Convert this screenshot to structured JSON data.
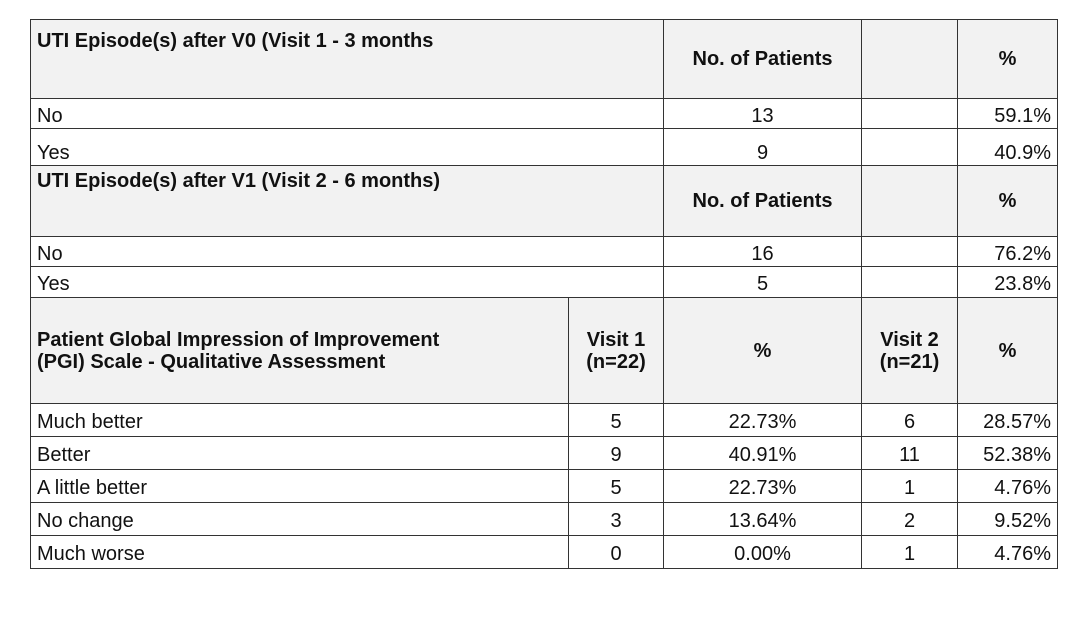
{
  "section1": {
    "header": {
      "label": "UTI Episode(s) after V0 (Visit 1 - 3 months",
      "count_col": "No. of Patients",
      "pct_col": "%"
    },
    "rows": [
      {
        "label": "No",
        "count": "13",
        "pct": "59.1%"
      },
      {
        "label": "Yes",
        "count": "9",
        "pct": "40.9%"
      }
    ]
  },
  "section2": {
    "header": {
      "label": "UTI Episode(s) after V1 (Visit 2 - 6 months)",
      "count_col": "No. of Patients",
      "pct_col": "%"
    },
    "rows": [
      {
        "label": "No",
        "count": "16",
        "pct": "76.2%"
      },
      {
        "label": "Yes",
        "count": "5",
        "pct": "23.8%"
      }
    ]
  },
  "section3": {
    "header": {
      "label_line1": "Patient Global Impression of Improvement",
      "label_line2": "(PGI) Scale - Qualitative Assessment",
      "visit1_line1": "Visit 1",
      "visit1_line2": "(n=22)",
      "pct1": "%",
      "visit2_line1": "Visit 2",
      "visit2_line2": "(n=21)",
      "pct2": "%"
    },
    "rows": [
      {
        "label": "Much better",
        "v1": "5",
        "p1": "22.73%",
        "v2": "6",
        "p2": "28.57%"
      },
      {
        "label": "Better",
        "v1": "9",
        "p1": "40.91%",
        "v2": "11",
        "p2": "52.38%"
      },
      {
        "label": "A little better",
        "v1": "5",
        "p1": "22.73%",
        "v2": "1",
        "p2": "4.76%"
      },
      {
        "label": "No change",
        "v1": "3",
        "p1": "13.64%",
        "v2": "2",
        "p2": "9.52%"
      },
      {
        "label": "Much worse",
        "v1": "0",
        "p1": "0.00%",
        "v2": "1",
        "p2": "4.76%"
      }
    ]
  }
}
